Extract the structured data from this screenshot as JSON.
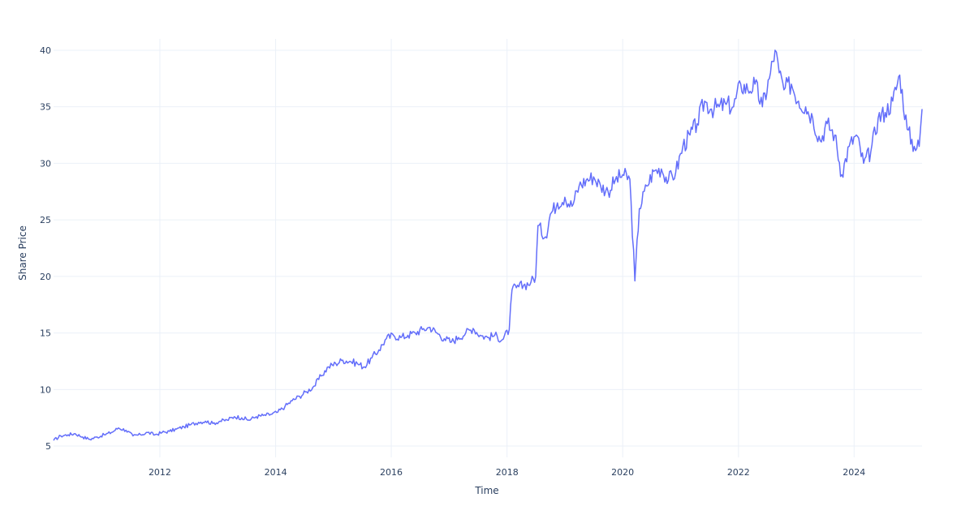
{
  "chart_data": {
    "type": "line",
    "title": "",
    "xlabel": "Time",
    "ylabel": "Share Price",
    "x_type": "date",
    "xlim": [
      "2010-03-01",
      "2025-03-05"
    ],
    "ylim": [
      4.0,
      41.0
    ],
    "x_ticks": [
      {
        "value": "2012-01-01",
        "label": "2012"
      },
      {
        "value": "2014-01-01",
        "label": "2014"
      },
      {
        "value": "2016-01-01",
        "label": "2016"
      },
      {
        "value": "2018-01-01",
        "label": "2018"
      },
      {
        "value": "2020-01-01",
        "label": "2020"
      },
      {
        "value": "2022-01-01",
        "label": "2022"
      },
      {
        "value": "2024-01-01",
        "label": "2024"
      }
    ],
    "y_ticks": [
      {
        "value": 5,
        "label": "5"
      },
      {
        "value": 10,
        "label": "10"
      },
      {
        "value": 15,
        "label": "15"
      },
      {
        "value": 20,
        "label": "20"
      },
      {
        "value": 25,
        "label": "25"
      },
      {
        "value": 30,
        "label": "30"
      },
      {
        "value": 35,
        "label": "35"
      },
      {
        "value": 40,
        "label": "40"
      }
    ],
    "grid": true,
    "colors": {
      "line": "#636efa",
      "grid": "#ebf0f8",
      "text": "#2a3f5f"
    },
    "series": [
      {
        "x": [
          "2010-03-01",
          "2010-04-15",
          "2010-06-01",
          "2010-07-15",
          "2010-09-01",
          "2010-10-15",
          "2010-12-01",
          "2011-01-15",
          "2011-03-01",
          "2011-04-15",
          "2011-06-01",
          "2011-07-15",
          "2011-09-01",
          "2011-10-15",
          "2011-12-01",
          "2012-01-15",
          "2012-03-01",
          "2012-04-15",
          "2012-06-01",
          "2012-07-15",
          "2012-09-01",
          "2012-10-15",
          "2012-12-01",
          "2013-01-15",
          "2013-03-01",
          "2013-04-15",
          "2013-06-01",
          "2013-07-15",
          "2013-09-01",
          "2013-10-15",
          "2013-12-01",
          "2014-01-15",
          "2014-03-01",
          "2014-04-15",
          "2014-06-01",
          "2014-07-15",
          "2014-09-01",
          "2014-10-15",
          "2014-12-01",
          "2015-01-15",
          "2015-03-01",
          "2015-04-15",
          "2015-06-01",
          "2015-07-15",
          "2015-09-01",
          "2015-10-15",
          "2015-12-01",
          "2016-01-15",
          "2016-03-01",
          "2016-04-15",
          "2016-06-01",
          "2016-07-15",
          "2016-09-01",
          "2016-10-15",
          "2016-12-01",
          "2017-01-15",
          "2017-03-01",
          "2017-04-15",
          "2017-06-01",
          "2017-07-15",
          "2017-09-01",
          "2017-10-15",
          "2017-12-01",
          "2018-01-15",
          "2018-02-01",
          "2018-03-01",
          "2018-04-15",
          "2018-06-01",
          "2018-07-01",
          "2018-07-15",
          "2018-09-01",
          "2018-10-01",
          "2018-11-15",
          "2019-01-01",
          "2019-02-15",
          "2019-04-01",
          "2019-05-15",
          "2019-07-01",
          "2019-08-15",
          "2019-10-01",
          "2019-11-15",
          "2020-01-01",
          "2020-02-15",
          "2020-03-18",
          "2020-04-15",
          "2020-06-01",
          "2020-07-15",
          "2020-09-01",
          "2020-10-15",
          "2020-12-01",
          "2021-01-15",
          "2021-03-01",
          "2021-04-15",
          "2021-06-01",
          "2021-07-15",
          "2021-09-01",
          "2021-10-15",
          "2021-12-01",
          "2022-01-15",
          "2022-03-01",
          "2022-04-15",
          "2022-06-01",
          "2022-07-15",
          "2022-08-20",
          "2022-09-15",
          "2022-10-15",
          "2022-12-01",
          "2023-01-15",
          "2023-03-01",
          "2023-04-15",
          "2023-06-01",
          "2023-07-15",
          "2023-09-01",
          "2023-10-15",
          "2023-12-01",
          "2024-01-15",
          "2024-03-01",
          "2024-04-15",
          "2024-06-01",
          "2024-07-15",
          "2024-09-01",
          "2024-10-15",
          "2024-12-01",
          "2025-01-15",
          "2025-02-15",
          "2025-03-05"
        ],
        "y": [
          5.5,
          5.9,
          6.0,
          6.1,
          5.8,
          5.6,
          5.8,
          6.0,
          6.2,
          6.6,
          6.4,
          5.9,
          6.0,
          6.2,
          6.0,
          6.2,
          6.3,
          6.5,
          6.7,
          6.9,
          7.1,
          7.2,
          7.0,
          7.2,
          7.3,
          7.6,
          7.5,
          7.3,
          7.6,
          7.7,
          7.8,
          8.0,
          8.5,
          9.0,
          9.4,
          9.8,
          10.3,
          11.2,
          12.0,
          12.3,
          12.6,
          12.5,
          12.3,
          12.0,
          12.8,
          13.5,
          14.5,
          14.8,
          14.6,
          14.8,
          15.0,
          15.3,
          15.5,
          15.0,
          14.5,
          14.2,
          14.6,
          15.0,
          15.4,
          14.8,
          14.6,
          14.8,
          14.4,
          15.3,
          18.8,
          19.0,
          19.2,
          19.5,
          20.0,
          24.5,
          23.5,
          25.5,
          26.5,
          27.0,
          26.2,
          28.0,
          28.5,
          28.8,
          28.0,
          27.5,
          28.5,
          29.0,
          28.6,
          19.6,
          26.0,
          28.0,
          29.3,
          29.5,
          28.5,
          29.2,
          31.5,
          32.5,
          33.5,
          35.5,
          34.8,
          35.0,
          35.2,
          35.0,
          37.0,
          36.5,
          37.0,
          35.0,
          37.5,
          40.0,
          38.0,
          36.5,
          37.0,
          35.5,
          35.0,
          34.0,
          32.0,
          33.5,
          32.5,
          29.0,
          31.5,
          32.5,
          30.0,
          31.0,
          34.0,
          34.5,
          35.5,
          37.8,
          33.0,
          31.5,
          31.5,
          34.8
        ]
      }
    ]
  }
}
